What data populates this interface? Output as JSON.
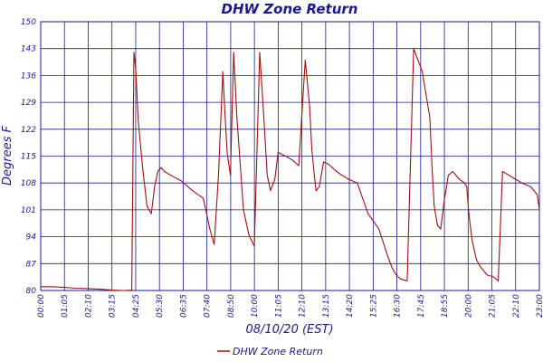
{
  "chart_data": {
    "type": "line",
    "title": "DHW Zone Return",
    "xlabel": "08/10/20 (EST)",
    "ylabel": "Degrees F",
    "ylim": [
      80,
      150
    ],
    "y_ticks": [
      "80",
      "87",
      "94",
      "101",
      "108",
      "115",
      "122",
      "129",
      "136",
      "143",
      "150"
    ],
    "x_ticks": [
      "00:00",
      "01:05",
      "02:10",
      "03:15",
      "04:25",
      "05:30",
      "06:35",
      "07:40",
      "08:50",
      "10:00",
      "11:05",
      "12:10",
      "13:15",
      "14:20",
      "15:25",
      "16:30",
      "17:45",
      "18:55",
      "20:00",
      "21:05",
      "22:10",
      "23:00"
    ],
    "grid": true,
    "legend_position": "bottom-center",
    "colors": {
      "series": "#a01010",
      "grid": "#1a1a8c",
      "text": "#1a1a8c"
    },
    "series": [
      {
        "name": "DHW Zone Return",
        "x_hours": [
          0,
          0.5,
          1.1,
          1.6,
          2.2,
          2.8,
          3.3,
          3.85,
          4.2,
          4.3,
          4.38,
          4.5,
          4.7,
          4.9,
          5.1,
          5.25,
          5.4,
          5.55,
          5.7,
          6.0,
          6.5,
          7.0,
          7.5,
          7.8,
          8.0,
          8.2,
          8.4,
          8.5,
          8.6,
          8.75,
          8.9,
          9.05,
          9.2,
          9.35,
          9.6,
          9.85,
          10.1,
          10.3,
          10.45,
          10.6,
          10.8,
          10.95,
          11.1,
          11.3,
          11.6,
          11.9,
          12.2,
          12.4,
          12.5,
          12.6,
          12.7,
          12.85,
          13.05,
          13.25,
          13.45,
          13.65,
          13.9,
          14.2,
          14.6,
          15.1,
          15.6,
          16.0,
          16.2,
          16.4,
          16.6,
          16.9,
          17.2,
          17.6,
          17.95,
          18.05,
          18.15,
          18.3,
          18.45,
          18.6,
          18.8,
          19.0,
          19.3,
          19.55,
          19.65,
          19.75,
          19.9,
          20.1,
          20.3,
          20.6,
          20.9,
          21.1,
          21.3,
          21.6,
          21.9,
          22.2,
          22.6,
          22.9,
          23.0
        ],
        "values": [
          81.0,
          81.0,
          80.8,
          80.6,
          80.5,
          80.3,
          80.1,
          80.0,
          80.1,
          142.0,
          138.0,
          124.0,
          112.0,
          102.0,
          100.0,
          107.0,
          111.0,
          112.0,
          111.0,
          110.0,
          108.5,
          106.0,
          104.0,
          96.0,
          92.0,
          110.0,
          137.0,
          126.0,
          116.0,
          110.0,
          142.0,
          125.0,
          113.0,
          101.0,
          94.5,
          91.5,
          142.0,
          124.0,
          110.0,
          106.0,
          109.0,
          116.0,
          115.5,
          115.0,
          114.0,
          112.5,
          140.0,
          128.0,
          117.0,
          111.0,
          106.0,
          107.0,
          113.5,
          113.0,
          112.0,
          111.0,
          110.0,
          109.0,
          108.0,
          100.0,
          96.0,
          89.0,
          86.0,
          84.0,
          83.0,
          82.5,
          143.0,
          137.0,
          125.0,
          112.0,
          102.0,
          97.0,
          96.0,
          103.0,
          110.0,
          111.0,
          109.0,
          108.0,
          107.0,
          100.0,
          93.0,
          88.0,
          86.0,
          84.0,
          83.5,
          82.5,
          111.0,
          110.0,
          109.0,
          108.0,
          107.0,
          105.0,
          101.0
        ]
      }
    ]
  }
}
